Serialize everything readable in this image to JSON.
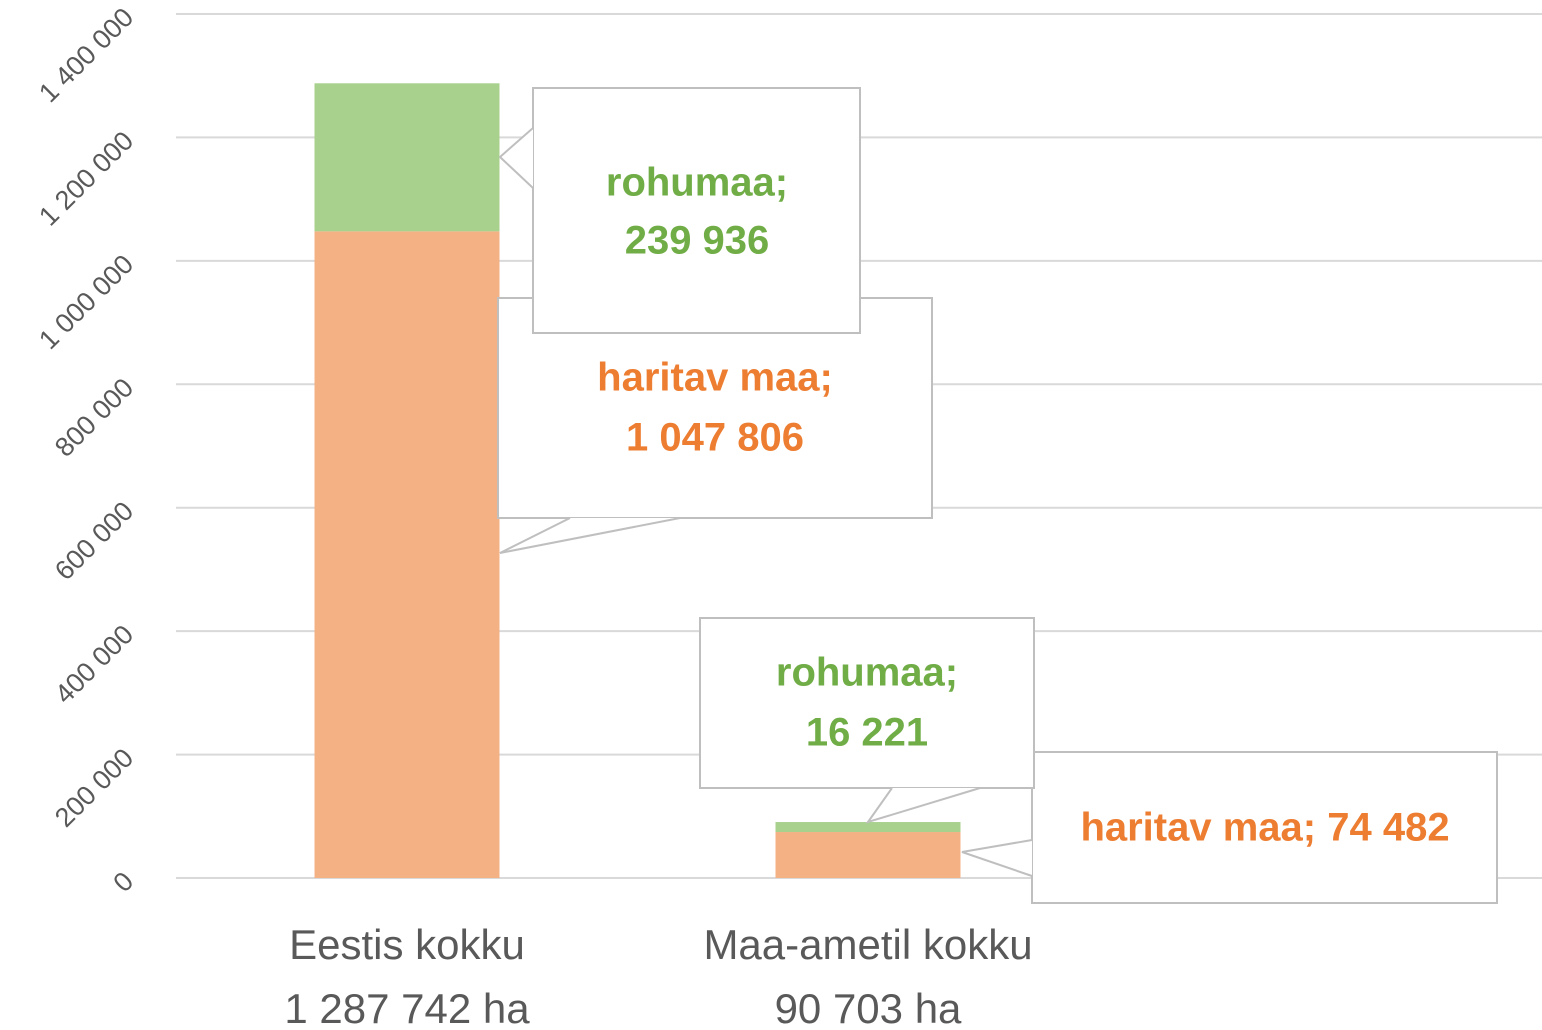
{
  "chart_data": {
    "type": "stacked_bar",
    "categories": [
      [
        "Eestis kokku",
        "1 287 742 ha"
      ],
      [
        "Maa-ametil kokku",
        "90 703 ha"
      ]
    ],
    "series": [
      {
        "color": "#f4b183",
        "label_color": "#ed7d31",
        "values": [
          1047806,
          74482
        ],
        "value_labels": [
          [
            "haritav maa;",
            "1 047 806"
          ],
          [
            "haritav maa; 74 482"
          ]
        ]
      },
      {
        "color": "#a9d18e",
        "label_color": "#70ad47",
        "values": [
          239936,
          16221
        ],
        "value_labels": [
          [
            "rohumaa;",
            "239 936"
          ],
          [
            "rohumaa;",
            "16 221"
          ]
        ]
      }
    ],
    "ylim": [
      0,
      1400000
    ],
    "yticks": [
      0,
      {
        "value": 200000,
        "label": "200 000"
      },
      {
        "value": 400000,
        "label": "400 000"
      },
      {
        "value": 600000,
        "label": "600 000"
      },
      {
        "value": 800000,
        "label": "800 000"
      },
      {
        "value": 1000000,
        "label": "1 000 000"
      },
      {
        "value": 1200000,
        "label": "1 200 000"
      },
      {
        "value": 1400000,
        "label": "1 400 000"
      }
    ],
    "grid": true
  }
}
